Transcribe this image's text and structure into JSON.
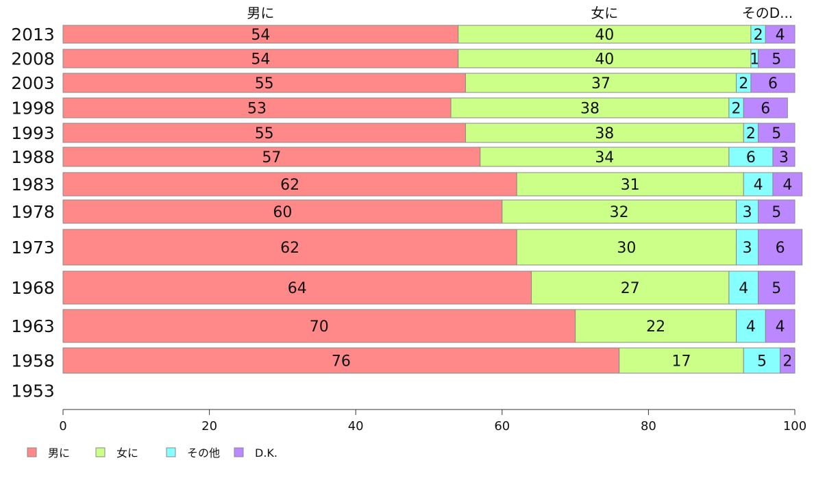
{
  "chart_data": {
    "type": "bar",
    "orientation": "horizontal",
    "stacked": true,
    "categories": [
      "2013",
      "2008",
      "2003",
      "1998",
      "1993",
      "1988",
      "1983",
      "1978",
      "1973",
      "1968",
      "1963",
      "1958",
      "1953"
    ],
    "series": [
      {
        "name": "男に",
        "color": "#ff8888",
        "values": [
          54,
          54,
          55,
          53,
          55,
          57,
          62,
          60,
          62,
          64,
          70,
          76,
          null
        ]
      },
      {
        "name": "女に",
        "color": "#ccff88",
        "values": [
          40,
          40,
          37,
          38,
          38,
          34,
          31,
          32,
          30,
          27,
          22,
          17,
          null
        ]
      },
      {
        "name": "その他",
        "color": "#88ffff",
        "values": [
          2,
          1,
          2,
          2,
          2,
          6,
          4,
          3,
          3,
          4,
          4,
          5,
          null
        ]
      },
      {
        "name": "D.K.",
        "color": "#bb88ff",
        "values": [
          4,
          5,
          6,
          6,
          5,
          3,
          4,
          5,
          6,
          5,
          4,
          2,
          null
        ]
      }
    ],
    "top_labels": [
      "男に",
      "女に",
      "そのD..."
    ],
    "xlim": [
      0,
      100
    ],
    "xticks": [
      0,
      20,
      40,
      60,
      80,
      100
    ],
    "legend_position": "bottom-left",
    "grid": false
  }
}
